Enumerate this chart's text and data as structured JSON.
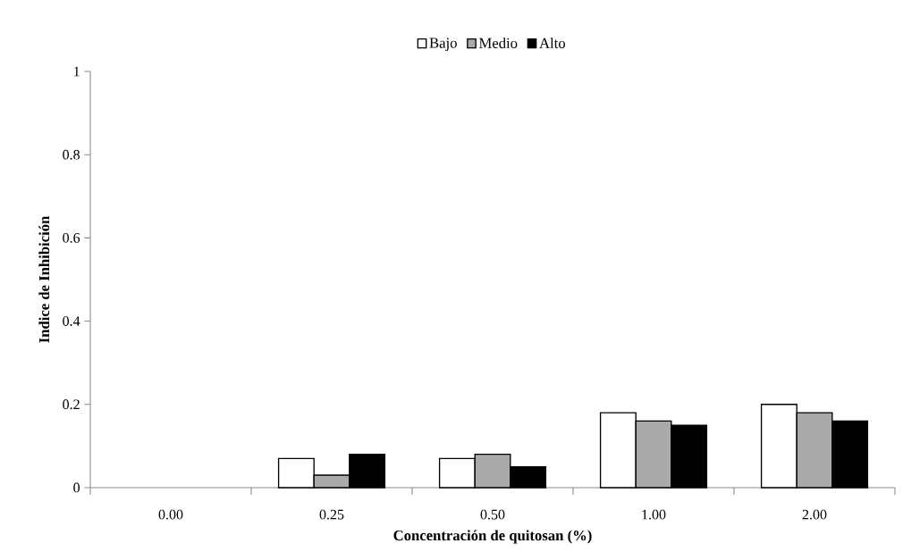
{
  "chart_data": {
    "type": "bar",
    "xlabel": "Concentración de quitosan (%)",
    "ylabel": "Indice de Inhibición",
    "categories": [
      "0.00",
      "0.25",
      "0.50",
      "1.00",
      "2.00"
    ],
    "series": [
      {
        "name": "Bajo",
        "color": "#ffffff",
        "values": [
          null,
          0.07,
          0.07,
          0.18,
          0.2
        ]
      },
      {
        "name": "Medio",
        "color": "#aaaaaa",
        "values": [
          null,
          0.03,
          0.08,
          0.16,
          0.18
        ]
      },
      {
        "name": "Alto",
        "color": "#000000",
        "values": [
          null,
          0.08,
          0.05,
          0.15,
          0.16
        ]
      }
    ],
    "ylim": [
      0,
      1
    ],
    "yticks": [
      0,
      0.2,
      0.4,
      0.6,
      0.8,
      1
    ],
    "grid": false,
    "legend": "top"
  }
}
